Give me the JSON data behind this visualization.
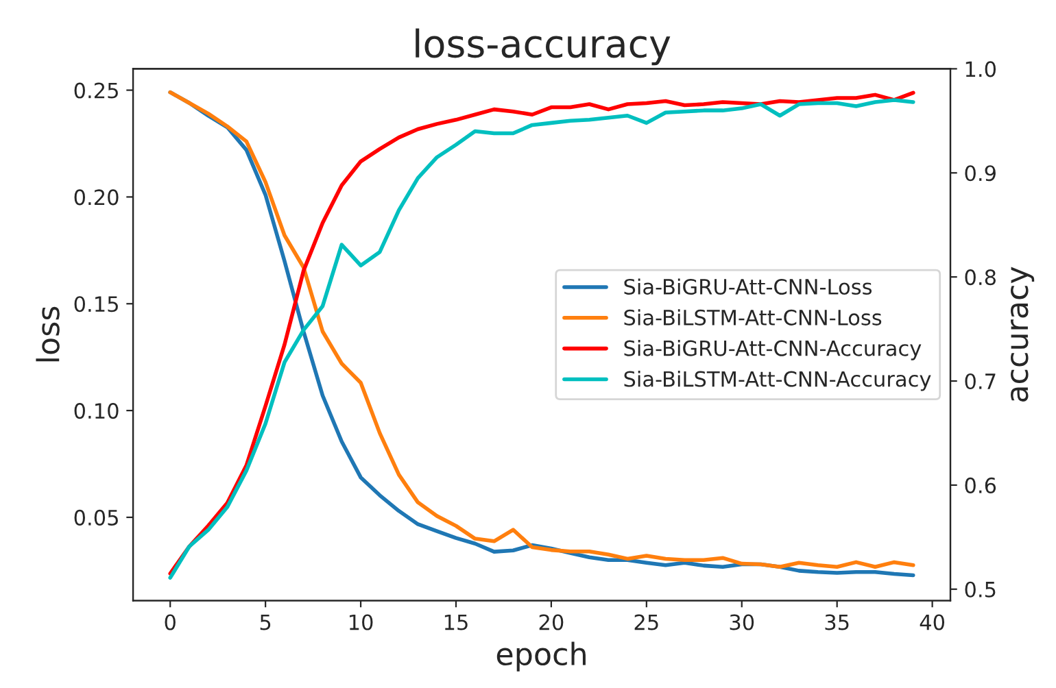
{
  "chart_data": {
    "type": "line",
    "title": "loss-accuracy",
    "xlabel": "epoch",
    "ylabel": "loss",
    "y2label": "accuracy",
    "x": [
      0,
      1,
      2,
      3,
      4,
      5,
      6,
      7,
      8,
      9,
      10,
      11,
      12,
      13,
      14,
      15,
      16,
      17,
      18,
      19,
      20,
      21,
      22,
      23,
      24,
      25,
      26,
      27,
      28,
      29,
      30,
      31,
      32,
      33,
      34,
      35,
      36,
      37,
      38,
      39
    ],
    "series": [
      {
        "name": "Sia-BiGRU-Att-CNN-Loss",
        "color": "#1f77b4",
        "values": [
          0.249,
          0.244,
          0.238,
          0.2326,
          0.222,
          0.201,
          0.17,
          0.137,
          0.107,
          0.0855,
          0.0687,
          0.0603,
          0.053,
          0.0468,
          0.0435,
          0.0403,
          0.0377,
          0.0339,
          0.0345,
          0.037,
          0.0354,
          0.0333,
          0.0313,
          0.03,
          0.03,
          0.0287,
          0.0276,
          0.0287,
          0.0274,
          0.0268,
          0.028,
          0.028,
          0.0268,
          0.025,
          0.0244,
          0.024,
          0.0244,
          0.0244,
          0.0235,
          0.0229
        ]
      },
      {
        "name": "Sia-BiLSTM-Att-CNN-Loss",
        "color": "#ff7f0e",
        "values": [
          0.249,
          0.244,
          0.239,
          0.233,
          0.226,
          0.207,
          0.182,
          0.167,
          0.137,
          0.122,
          0.113,
          0.0894,
          0.07,
          0.057,
          0.0506,
          0.046,
          0.04,
          0.0388,
          0.0442,
          0.036,
          0.0347,
          0.034,
          0.034,
          0.0326,
          0.0306,
          0.032,
          0.0306,
          0.03,
          0.03,
          0.031,
          0.0283,
          0.028,
          0.0268,
          0.0287,
          0.0276,
          0.0268,
          0.029,
          0.0268,
          0.029,
          0.0276
        ]
      },
      {
        "name": "Sia-BiGRU-Att-CNN-Accuracy",
        "color": "#ff0000",
        "axis": "y2",
        "values": [
          0.515,
          0.541,
          0.561,
          0.583,
          0.619,
          0.676,
          0.735,
          0.806,
          0.852,
          0.888,
          0.911,
          0.923,
          0.934,
          0.942,
          0.947,
          0.951,
          0.956,
          0.961,
          0.959,
          0.956,
          0.963,
          0.963,
          0.966,
          0.961,
          0.966,
          0.967,
          0.969,
          0.965,
          0.966,
          0.968,
          0.967,
          0.966,
          0.969,
          0.968,
          0.97,
          0.972,
          0.972,
          0.975,
          0.97,
          0.977
        ]
      },
      {
        "name": "Sia-BiLSTM-Att-CNN-Accuracy",
        "color": "#00bfbf",
        "axis": "y2",
        "values": [
          0.511,
          0.541,
          0.557,
          0.579,
          0.614,
          0.659,
          0.718,
          0.749,
          0.772,
          0.831,
          0.811,
          0.824,
          0.864,
          0.895,
          0.915,
          0.927,
          0.94,
          0.938,
          0.938,
          0.946,
          0.948,
          0.95,
          0.951,
          0.953,
          0.955,
          0.948,
          0.958,
          0.959,
          0.96,
          0.96,
          0.962,
          0.966,
          0.955,
          0.966,
          0.967,
          0.967,
          0.964,
          0.968,
          0.97,
          0.968
        ]
      }
    ],
    "xlim": [
      -1.95,
      40.95
    ],
    "xticks": [
      0,
      5,
      10,
      15,
      20,
      25,
      30,
      35,
      40
    ],
    "ylim": [
      0.011,
      0.26
    ],
    "yticks": [
      0.05,
      {
        "value": 0.1,
        "label": "0.10"
      },
      0.15,
      {
        "value": 0.2,
        "label": "0.20"
      },
      0.25
    ],
    "y2lim": [
      0.489,
      1.0
    ],
    "y2ticks": [
      0.5,
      0.6,
      0.7,
      0.8,
      0.9,
      {
        "value": 1,
        "label": "1.0"
      }
    ],
    "legend": "center right",
    "grid": false,
    "marker": "none",
    "line_style": "solid"
  }
}
